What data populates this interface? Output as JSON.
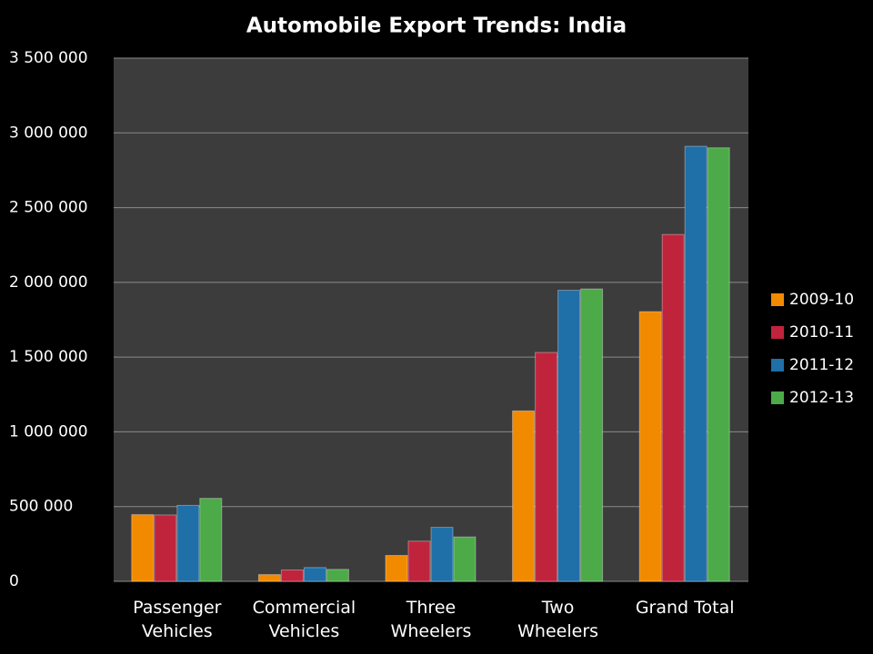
{
  "chart_data": {
    "type": "bar",
    "title": "Automobile Export Trends: India",
    "categories": [
      "Passenger Vehicles",
      "Commercial Vehicles",
      "Three Wheelers",
      "Two Wheelers",
      "Grand Total"
    ],
    "series": [
      {
        "name": "2009-10",
        "color": "#f28a00",
        "values": [
          446000,
          45000,
          173000,
          1140000,
          1804000
        ]
      },
      {
        "name": "2010-11",
        "color": "#c0243c",
        "values": [
          444000,
          76000,
          269000,
          1531000,
          2320000
        ]
      },
      {
        "name": "2011-12",
        "color": "#1f6fa8",
        "values": [
          508000,
          92000,
          361000,
          1947000,
          2910000
        ]
      },
      {
        "name": "2012-13",
        "color": "#4caa48",
        "values": [
          555000,
          80000,
          297000,
          1956000,
          2900000
        ]
      }
    ],
    "ylim": [
      0,
      3500000
    ],
    "yticks": [
      0,
      {
        "value": 500000,
        "label": "500 000"
      },
      {
        "value": 1000000,
        "label": "1 000 000"
      },
      {
        "value": 1500000,
        "label": "1 500 000"
      },
      {
        "value": 2000000,
        "label": "2 000 000"
      },
      {
        "value": 2500000,
        "label": "2 500 000"
      },
      {
        "value": 3000000,
        "label": "3 000 000"
      },
      {
        "value": 3500000,
        "label": "3 500 000"
      }
    ],
    "grid": true,
    "legend": "right"
  }
}
